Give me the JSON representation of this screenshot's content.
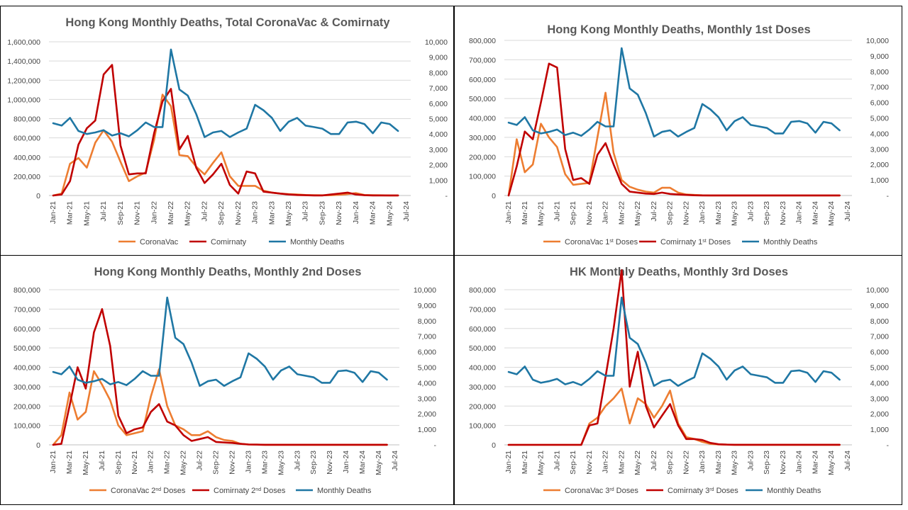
{
  "chart_data": [
    {
      "type": "line",
      "title": "Hong Kong Monthly Deaths, Total CoronaVac & Comirnaty",
      "x_tick_labels": [
        "Jan-21",
        "Mar-21",
        "May-21",
        "Jul-21",
        "Sep-21",
        "Nov-21",
        "Jan-22",
        "Mar-22",
        "May-22",
        "Jul-22",
        "Sep-22",
        "Nov-22",
        "Jan-23",
        "Mar-23",
        "May-23",
        "Jul-23",
        "Sep-23",
        "Nov-23",
        "Jan-24",
        "Mar-24",
        "May-24",
        "Jul-24"
      ],
      "y_left_ticks": [
        "0",
        "200,000",
        "400,000",
        "600,000",
        "800,000",
        "1,000,000",
        "1,200,000",
        "1,400,000",
        "1,600,000"
      ],
      "y_right_ticks": [
        "-",
        "1,000",
        "2,000",
        "3,000",
        "4,000",
        "5,000",
        "6,000",
        "7,000",
        "8,000",
        "9,000",
        "10,000"
      ],
      "ylim_left": [
        0,
        1600000
      ],
      "ylim_right": [
        0,
        10000
      ],
      "legend_position": "bottom",
      "series": [
        {
          "name": "CoronaVac",
          "axis": "left",
          "color": "#ed7d31",
          "values": [
            0,
            20000,
            330000,
            390000,
            290000,
            550000,
            680000,
            560000,
            350000,
            150000,
            200000,
            240000,
            580000,
            1050000,
            930000,
            420000,
            410000,
            300000,
            220000,
            340000,
            450000,
            200000,
            100000,
            100000,
            100000,
            50000,
            30000,
            20000,
            15000,
            10000,
            5000,
            3000,
            2000,
            3000,
            8000,
            15000,
            25000,
            5000,
            3000,
            2000,
            1000,
            1000
          ]
        },
        {
          "name": "Comirnaty",
          "axis": "left",
          "color": "#c00000",
          "values": [
            0,
            10000,
            150000,
            530000,
            700000,
            780000,
            1260000,
            1360000,
            520000,
            220000,
            230000,
            230000,
            650000,
            980000,
            1110000,
            480000,
            620000,
            290000,
            130000,
            220000,
            330000,
            110000,
            20000,
            250000,
            230000,
            40000,
            30000,
            20000,
            10000,
            5000,
            3000,
            1000,
            1000,
            10000,
            20000,
            30000,
            10000,
            3000,
            1000,
            1000,
            500,
            500
          ]
        },
        {
          "name": "Monthly Deaths",
          "axis": "right",
          "color": "#1f77a4",
          "values": [
            4700,
            4550,
            5050,
            4200,
            4000,
            4100,
            4250,
            3900,
            4050,
            3850,
            4250,
            4750,
            4450,
            4450,
            9500,
            6900,
            6500,
            5300,
            3800,
            4100,
            4200,
            3800,
            4100,
            4350,
            5900,
            5550,
            5050,
            4200,
            4800,
            5050,
            4550,
            4450,
            4350,
            4000,
            4000,
            4750,
            4800,
            4650,
            4050,
            4750,
            4650,
            4200
          ]
        }
      ]
    },
    {
      "type": "line",
      "title": "Hong Kong Monthly Deaths, Monthly 1st Doses",
      "x_tick_labels": [
        "Jan-21",
        "Mar-21",
        "May-21",
        "Jul-21",
        "Sep-21",
        "Nov-21",
        "Jan-22",
        "Mar-22",
        "May-22",
        "Jul-22",
        "Sep-22",
        "Nov-22",
        "Jan-23",
        "Mar-23",
        "May-23",
        "Jul-23",
        "Sep-23",
        "Nov-23",
        "Jan-24",
        "Mar-24",
        "May-24",
        "Jul-24"
      ],
      "y_left_ticks": [
        "0",
        "100,000",
        "200,000",
        "300,000",
        "400,000",
        "500,000",
        "600,000",
        "700,000",
        "800,000"
      ],
      "y_right_ticks": [
        "-",
        "1,000",
        "2,000",
        "3,000",
        "4,000",
        "5,000",
        "6,000",
        "7,000",
        "8,000",
        "9,000",
        "10,000"
      ],
      "ylim_left": [
        0,
        800000
      ],
      "ylim_right": [
        0,
        10000
      ],
      "legend_position": "bottom",
      "legend": [
        {
          "text": "CoronaVac 1",
          "sup": "st",
          "tail": " Doses"
        },
        {
          "text": "Comirnaty 1",
          "sup": "st",
          "tail": " Doses"
        },
        {
          "text": "Monthly Deaths",
          "sup": "",
          "tail": ""
        }
      ],
      "series": [
        {
          "name": "CoronaVac 1st Doses",
          "axis": "left",
          "color": "#ed7d31",
          "values": [
            0,
            290000,
            120000,
            160000,
            370000,
            300000,
            250000,
            110000,
            55000,
            60000,
            65000,
            300000,
            530000,
            220000,
            80000,
            45000,
            30000,
            20000,
            15000,
            40000,
            40000,
            15000,
            5000,
            3000,
            1000,
            500,
            500,
            500,
            500,
            500,
            500,
            500,
            500,
            500,
            500,
            500,
            500,
            500,
            500,
            500,
            500,
            500
          ]
        },
        {
          "name": "Comirnaty 1st Doses",
          "axis": "left",
          "color": "#c00000",
          "values": [
            0,
            150000,
            330000,
            290000,
            480000,
            680000,
            660000,
            240000,
            80000,
            90000,
            60000,
            210000,
            270000,
            160000,
            60000,
            20000,
            15000,
            10000,
            8000,
            15000,
            8000,
            5000,
            3000,
            1000,
            500,
            500,
            500,
            500,
            500,
            500,
            500,
            500,
            500,
            500,
            500,
            500,
            500,
            500,
            500,
            500,
            500,
            500
          ]
        },
        {
          "name": "Monthly Deaths",
          "axis": "right",
          "color": "#1f77a4",
          "values": [
            4700,
            4550,
            5050,
            4200,
            4000,
            4100,
            4250,
            3900,
            4050,
            3850,
            4250,
            4750,
            4450,
            4450,
            9500,
            6900,
            6500,
            5300,
            3800,
            4100,
            4200,
            3800,
            4100,
            4350,
            5900,
            5550,
            5050,
            4200,
            4800,
            5050,
            4550,
            4450,
            4350,
            4000,
            4000,
            4750,
            4800,
            4650,
            4050,
            4750,
            4650,
            4200
          ]
        }
      ]
    },
    {
      "type": "line",
      "title": "Hong Kong Monthly Deaths, Monthly 2nd Doses",
      "x_tick_labels": [
        "Jan-21",
        "Mar-21",
        "May-21",
        "Jul-21",
        "Sep-21",
        "Nov-21",
        "Jan-22",
        "Mar-22",
        "May-22",
        "Jul-22",
        "Sep-22",
        "Nov-22",
        "Jan-23",
        "Mar-23",
        "May-23",
        "Jul-23",
        "Sep-23",
        "Nov-23",
        "Jan-24",
        "Mar-24",
        "May-24",
        "Jul-24"
      ],
      "y_left_ticks": [
        "0",
        "100,000",
        "200,000",
        "300,000",
        "400,000",
        "500,000",
        "600,000",
        "700,000",
        "800,000"
      ],
      "y_right_ticks": [
        "-",
        "1,000",
        "2,000",
        "3,000",
        "4,000",
        "5,000",
        "6,000",
        "7,000",
        "8,000",
        "9,000",
        "10,000"
      ],
      "ylim_left": [
        0,
        800000
      ],
      "ylim_right": [
        0,
        10000
      ],
      "legend_position": "bottom",
      "legend": [
        {
          "text": "CoronaVac 2",
          "sup": "nd",
          "tail": " Doses"
        },
        {
          "text": "Comirnaty 2",
          "sup": "nd",
          "tail": " Doses"
        },
        {
          "text": "Monthly Deaths",
          "sup": "",
          "tail": ""
        }
      ],
      "series": [
        {
          "name": "CoronaVac 2nd Doses",
          "axis": "left",
          "color": "#ed7d31",
          "values": [
            0,
            50000,
            270000,
            130000,
            170000,
            380000,
            310000,
            230000,
            100000,
            50000,
            60000,
            70000,
            250000,
            390000,
            200000,
            100000,
            80000,
            50000,
            50000,
            70000,
            40000,
            25000,
            20000,
            5000,
            2000,
            1000,
            500,
            500,
            500,
            500,
            500,
            500,
            500,
            500,
            500,
            500,
            500,
            500,
            500,
            500,
            500,
            500
          ]
        },
        {
          "name": "Comirnaty 2nd Doses",
          "axis": "left",
          "color": "#c00000",
          "values": [
            0,
            5000,
            200000,
            400000,
            290000,
            580000,
            700000,
            510000,
            150000,
            60000,
            80000,
            90000,
            170000,
            210000,
            120000,
            100000,
            50000,
            20000,
            30000,
            40000,
            15000,
            12000,
            10000,
            5000,
            2000,
            1000,
            500,
            500,
            500,
            500,
            500,
            500,
            500,
            500,
            500,
            500,
            500,
            500,
            500,
            500,
            500,
            500
          ]
        },
        {
          "name": "Monthly Deaths",
          "axis": "right",
          "color": "#1f77a4",
          "values": [
            4700,
            4550,
            5050,
            4200,
            4000,
            4100,
            4250,
            3900,
            4050,
            3850,
            4250,
            4750,
            4450,
            4450,
            9500,
            6900,
            6500,
            5300,
            3800,
            4100,
            4200,
            3800,
            4100,
            4350,
            5900,
            5550,
            5050,
            4200,
            4800,
            5050,
            4550,
            4450,
            4350,
            4000,
            4000,
            4750,
            4800,
            4650,
            4050,
            4750,
            4650,
            4200
          ]
        }
      ]
    },
    {
      "type": "line",
      "title": "HK Monthly Deaths, Monthly 3rd Doses",
      "x_tick_labels": [
        "Jan-21",
        "Mar-21",
        "May-21",
        "Jul-21",
        "Sep-21",
        "Nov-21",
        "Jan-22",
        "Mar-22",
        "May-22",
        "Jul-22",
        "Sep-22",
        "Nov-22",
        "Jan-23",
        "Mar-23",
        "May-23",
        "Jul-23",
        "Sep-23",
        "Nov-23",
        "Jan-24",
        "Mar-24",
        "May-24",
        "Jul-24"
      ],
      "y_left_ticks": [
        "0",
        "100,000",
        "200,000",
        "300,000",
        "400,000",
        "500,000",
        "600,000",
        "700,000",
        "800,000"
      ],
      "y_right_ticks": [
        "-",
        "1,000",
        "2,000",
        "3,000",
        "4,000",
        "5,000",
        "6,000",
        "7,000",
        "8,000",
        "9,000",
        "10,000"
      ],
      "ylim_left": [
        0,
        800000
      ],
      "ylim_right": [
        0,
        10000
      ],
      "legend_position": "bottom",
      "legend": [
        {
          "text": "CoronaVac 3",
          "sup": "rd",
          "tail": " Doses"
        },
        {
          "text": "Comirnaty 3",
          "sup": "rd",
          "tail": " Doses"
        },
        {
          "text": "Monthly Deaths",
          "sup": "",
          "tail": ""
        }
      ],
      "series": [
        {
          "name": "CoronaVac 3rd Doses",
          "axis": "left",
          "color": "#ed7d31",
          "values": [
            0,
            0,
            0,
            0,
            0,
            0,
            0,
            0,
            0,
            0,
            110000,
            140000,
            200000,
            240000,
            290000,
            110000,
            240000,
            210000,
            140000,
            200000,
            280000,
            110000,
            40000,
            30000,
            15000,
            5000,
            2000,
            1000,
            500,
            500,
            500,
            500,
            500,
            500,
            500,
            500,
            500,
            500,
            500,
            500,
            500,
            500
          ]
        },
        {
          "name": "Comirnaty 3rd Doses",
          "axis": "left",
          "color": "#c00000",
          "values": [
            0,
            0,
            0,
            0,
            0,
            0,
            0,
            0,
            0,
            0,
            100000,
            110000,
            350000,
            600000,
            900000,
            300000,
            480000,
            200000,
            90000,
            150000,
            210000,
            100000,
            30000,
            30000,
            25000,
            10000,
            3000,
            1000,
            500,
            500,
            500,
            500,
            500,
            500,
            500,
            500,
            500,
            500,
            500,
            500,
            500,
            500
          ]
        },
        {
          "name": "Monthly Deaths",
          "axis": "right",
          "color": "#1f77a4",
          "values": [
            4700,
            4550,
            5050,
            4200,
            4000,
            4100,
            4250,
            3900,
            4050,
            3850,
            4250,
            4750,
            4450,
            4450,
            9500,
            6900,
            6500,
            5300,
            3800,
            4100,
            4200,
            3800,
            4100,
            4350,
            5900,
            5550,
            5050,
            4200,
            4800,
            5050,
            4550,
            4450,
            4350,
            4000,
            4000,
            4750,
            4800,
            4650,
            4050,
            4750,
            4650,
            4200
          ]
        }
      ]
    }
  ]
}
